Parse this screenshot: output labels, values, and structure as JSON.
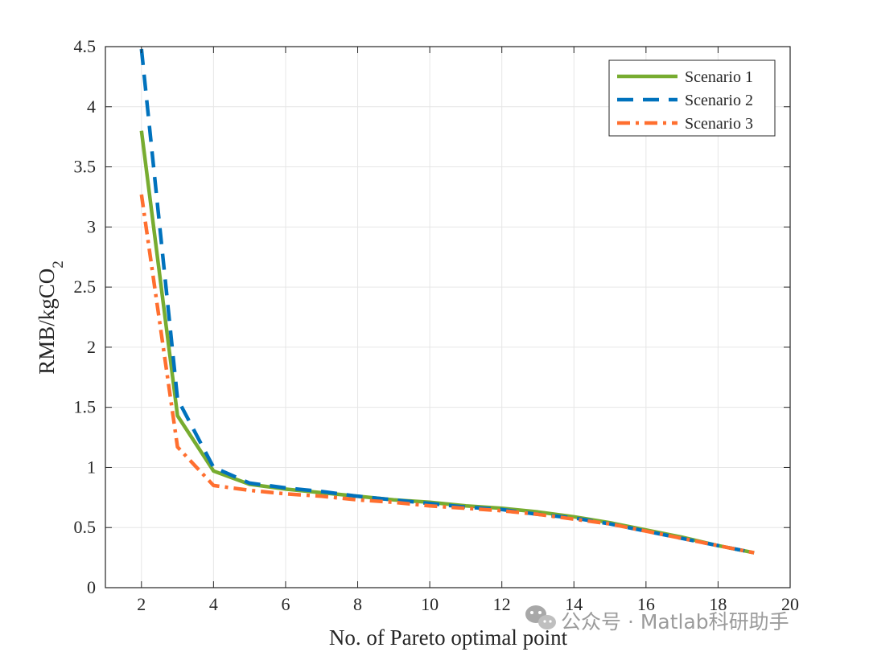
{
  "chart_data": {
    "type": "line",
    "title": "",
    "xlabel": "No. of Pareto optimal point",
    "ylabel": "RMB/kgCO",
    "ylabel_subscript": "2",
    "xlim": [
      1,
      20
    ],
    "ylim": [
      0,
      4.5
    ],
    "xticks": [
      2,
      4,
      6,
      8,
      10,
      12,
      14,
      16,
      18,
      20
    ],
    "yticks": [
      0,
      0.5,
      1,
      1.5,
      2,
      2.5,
      3,
      3.5,
      4,
      4.5
    ],
    "ytick_labels": [
      "0",
      "0.5",
      "1",
      "1.5",
      "2",
      "2.5",
      "3",
      "3.5",
      "4",
      "4.5"
    ],
    "grid": true,
    "legend_position": "top-right",
    "x": [
      2,
      3,
      4,
      5,
      6,
      7,
      8,
      9,
      10,
      11,
      12,
      13,
      14,
      15,
      16,
      17,
      18,
      19
    ],
    "series": [
      {
        "name": "Scenario 1",
        "color": "#77AC30",
        "style": "solid",
        "values": [
          3.8,
          1.43,
          0.97,
          0.86,
          0.82,
          0.79,
          0.76,
          0.73,
          0.71,
          0.68,
          0.66,
          0.63,
          0.59,
          0.54,
          0.48,
          0.42,
          0.35,
          0.29
        ]
      },
      {
        "name": "Scenario 2",
        "color": "#0072BD",
        "style": "dashed",
        "values": [
          4.48,
          1.57,
          1.0,
          0.87,
          0.83,
          0.8,
          0.76,
          0.73,
          0.7,
          0.67,
          0.65,
          0.61,
          0.58,
          0.53,
          0.47,
          0.41,
          0.35,
          0.29
        ]
      },
      {
        "name": "Scenario 3",
        "color": "#FF6F2F",
        "style": "dashdot",
        "values": [
          3.27,
          1.17,
          0.85,
          0.81,
          0.78,
          0.76,
          0.73,
          0.71,
          0.68,
          0.66,
          0.64,
          0.61,
          0.57,
          0.53,
          0.47,
          0.41,
          0.35,
          0.29
        ]
      }
    ]
  },
  "watermark": {
    "text": "公众号 · Matlab科研助手",
    "icon": "wechat-icon"
  }
}
